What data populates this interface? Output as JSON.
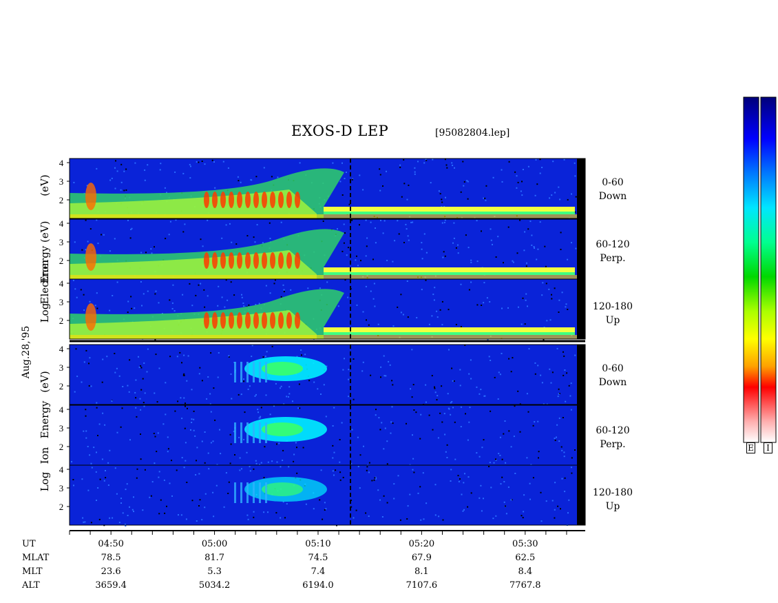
{
  "title": "EXOS-D LEP",
  "filename": "[95082804.lep]",
  "date_label": "Aug.28,'95",
  "electron_ylabel": [
    "Log",
    "Electron",
    "Energy",
    "(eV)"
  ],
  "ion_ylabel": [
    "Log",
    "Ion",
    "Energy",
    "(eV)"
  ],
  "y_ticks": [
    "4",
    "3",
    "2"
  ],
  "channels": [
    {
      "range": "0-60",
      "dir": "Down"
    },
    {
      "range": "60-120",
      "dir": "Perp."
    },
    {
      "range": "120-180",
      "dir": "Up"
    }
  ],
  "colorbar_labels": [
    "E",
    "I"
  ],
  "colorbar_colors": [
    "#00007a",
    "#0000ff",
    "#0078ff",
    "#00e6ff",
    "#00ff90",
    "#00d800",
    "#aaff00",
    "#ffff00",
    "#ffa000",
    "#ff0000",
    "#ffb0b0",
    "#ffffff"
  ],
  "chart_data": {
    "type": "heatmap",
    "title": "EXOS-D LEP",
    "panels": [
      "Electron 0-60 Down",
      "Electron 60-120 Perp.",
      "Electron 120-180 Up",
      "Ion 0-60 Down",
      "Ion 60-120 Perp.",
      "Ion 120-180 Up"
    ],
    "ylabel": "Log Energy (eV)",
    "ylim": [
      1,
      4
    ],
    "x_ticks": [
      "04:50",
      "05:00",
      "05:10",
      "05:20",
      "05:30"
    ],
    "ephemeris": [
      {
        "label": "UT",
        "values": [
          "04:50",
          "05:00",
          "05:10",
          "05:20",
          "05:30"
        ]
      },
      {
        "label": "MLAT",
        "values": [
          "78.5",
          "81.7",
          "74.5",
          "67.9",
          "62.5"
        ]
      },
      {
        "label": "MLT",
        "values": [
          "23.6",
          "5.3",
          "7.4",
          "8.1",
          "8.4"
        ]
      },
      {
        "label": "ALT",
        "values": [
          "3659.4",
          "5034.2",
          "6194.0",
          "7107.6",
          "7767.8"
        ]
      }
    ]
  }
}
